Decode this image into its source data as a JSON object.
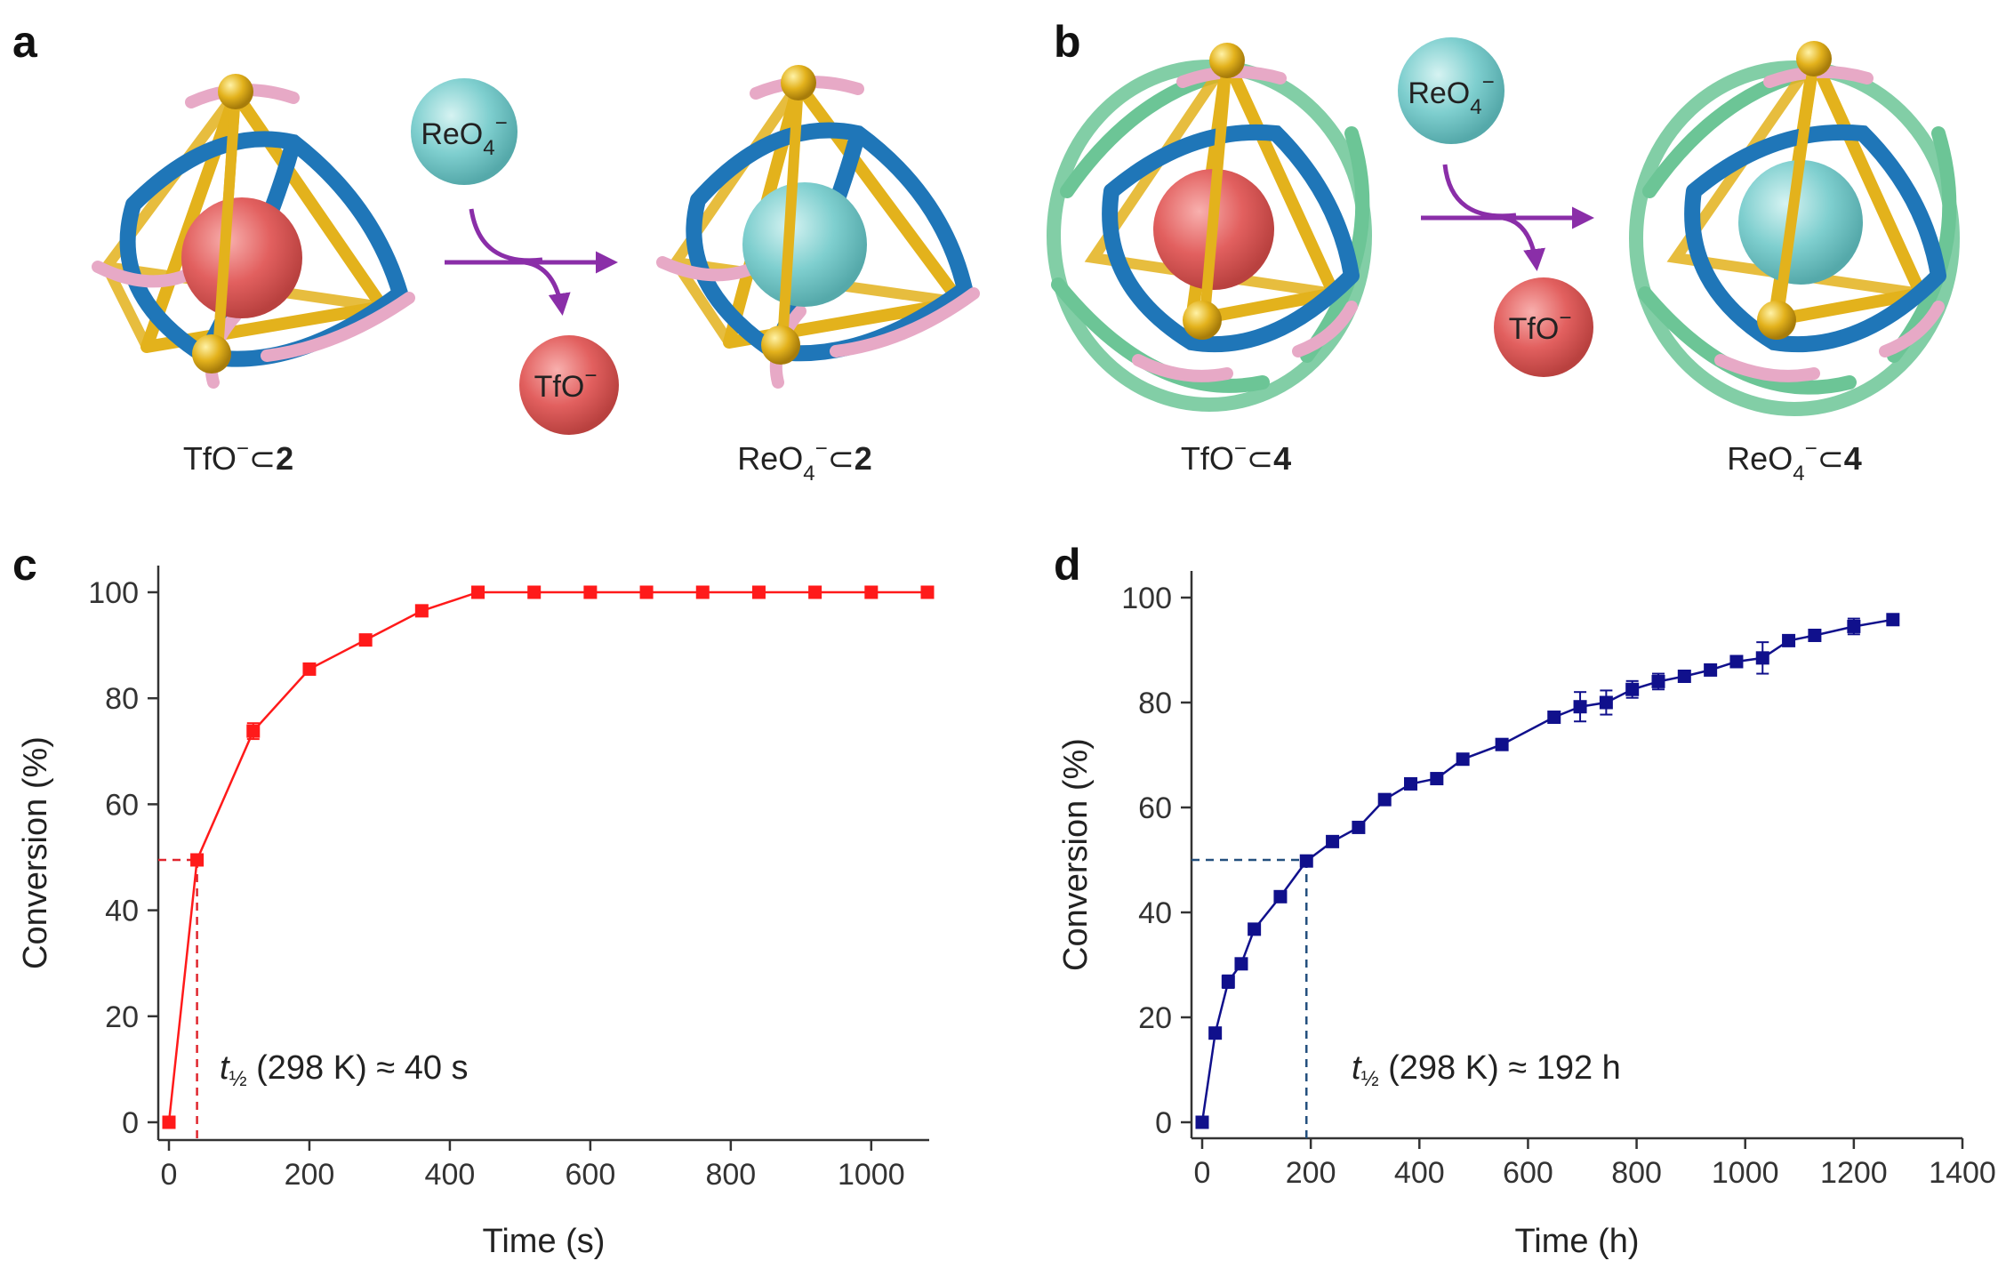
{
  "panels": {
    "a": {
      "letter": "a",
      "left_label": {
        "prefix": "TfO",
        "sup": "−",
        "sub": "",
        "mid": "⊂",
        "num": "2"
      },
      "right_label": {
        "prefix": "ReO",
        "sub": "4",
        "sup": "−",
        "mid": "⊂",
        "num": "2"
      },
      "incoming": {
        "text": "ReO",
        "sub": "4",
        "sup": "−"
      },
      "outgoing": {
        "text": "TfO",
        "sup": "−"
      }
    },
    "b": {
      "letter": "b",
      "left_label": {
        "prefix": "TfO",
        "sup": "−",
        "sub": "",
        "mid": "⊂",
        "num": "4"
      },
      "right_label": {
        "prefix": "ReO",
        "sub": "4",
        "sup": "−",
        "mid": "⊂",
        "num": "4"
      },
      "incoming": {
        "text": "ReO",
        "sub": "4",
        "sup": "−"
      },
      "outgoing": {
        "text": "TfO",
        "sup": "−"
      }
    }
  },
  "colors": {
    "cage_yellow": "#e3b21c",
    "cage_blue": "#1f76b8",
    "cage_pink": "#e7a9c6",
    "cage_green": "#6cc596",
    "guest_red": "#e2605f",
    "guest_cyan": "#7fcfcf",
    "arrow_purple": "#8a2ea8",
    "series_red": "#ff1a1a",
    "series_navy": "#10108c",
    "dash_red": "#e0262e",
    "dash_navy": "#24507e"
  },
  "chart_data": [
    {
      "panel": "c",
      "type": "line",
      "xlabel": "Time (s)",
      "ylabel": "Conversion (%)",
      "xlim": [
        0,
        1080
      ],
      "ylim": [
        0,
        100
      ],
      "xticks": [
        0,
        200,
        400,
        600,
        800,
        1000
      ],
      "yticks": [
        0,
        20,
        40,
        60,
        80,
        100
      ],
      "series": [
        {
          "color": "#ff1a1a",
          "marker": "square",
          "x": [
            0,
            40,
            120,
            200,
            280,
            360,
            440,
            520,
            600,
            680,
            760,
            840,
            920,
            1000,
            1080
          ],
          "y": [
            0,
            49.5,
            73.8,
            85.5,
            91,
            96.5,
            100,
            100,
            100,
            100,
            100,
            100,
            100,
            100,
            100
          ],
          "err": [
            0,
            0,
            1.5,
            1,
            0,
            0.6,
            0,
            0,
            0,
            0,
            0,
            0,
            0,
            0,
            0
          ]
        }
      ],
      "half_life_marker": {
        "x": 40,
        "y": 49.5
      },
      "annotation": {
        "t": "t",
        "sub": "½",
        "rest": " (298 K) ≈ 40 s"
      }
    },
    {
      "panel": "d",
      "type": "line",
      "xlabel": "Time (h)",
      "ylabel": "Conversion (%)",
      "xlim": [
        0,
        1400
      ],
      "ylim": [
        0,
        100
      ],
      "xticks": [
        0,
        200,
        400,
        600,
        800,
        1000,
        1200,
        1400
      ],
      "yticks": [
        0,
        20,
        40,
        60,
        80,
        100
      ],
      "series": [
        {
          "color": "#10108c",
          "marker": "square",
          "x": [
            0,
            24,
            48,
            72,
            96,
            144,
            192,
            240,
            288,
            336,
            384,
            432,
            480,
            552,
            648,
            696,
            744,
            792,
            840,
            888,
            936,
            984,
            1032,
            1080,
            1128,
            1200,
            1272
          ],
          "y": [
            0,
            17,
            26.8,
            30.2,
            36.8,
            43,
            49.8,
            53.5,
            56.2,
            61.5,
            64.5,
            65.5,
            69.2,
            72,
            77.2,
            79.2,
            80,
            82.5,
            84,
            85,
            86.2,
            87.8,
            88.5,
            91.8,
            92.8,
            94.5,
            95.8
          ],
          "err": [
            0,
            0,
            1.2,
            0,
            0,
            0,
            0,
            0,
            0,
            0,
            0,
            0,
            0,
            0,
            1,
            2.8,
            2.3,
            1.6,
            1.5,
            0.8,
            0.5,
            0.4,
            3,
            0,
            0,
            1.5,
            0.5
          ]
        }
      ],
      "half_life_marker": {
        "x": 192,
        "y": 50
      },
      "annotation": {
        "t": "t",
        "sub": "½",
        "rest": " (298 K) ≈ 192 h"
      }
    }
  ]
}
